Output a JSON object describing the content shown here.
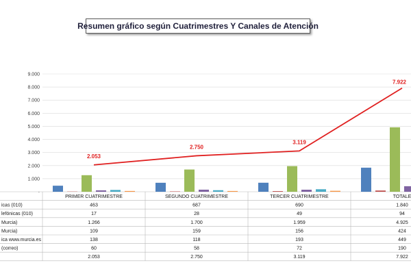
{
  "title": "Resumen gráfico según Cuatrimestres Y  Canales de Atención",
  "chart_data": {
    "type": "bar",
    "categories": [
      "PRIMER CUATRIMESTRE",
      "SEGUNDO CUATRIMESTRE",
      "TERCER CUATRIMESTRE",
      "TOTALE"
    ],
    "series": [
      {
        "name": "icas        (010)",
        "color": "#4f81bd",
        "values": [
          463,
          687,
          690,
          1840
        ]
      },
      {
        "name": "lefónicas (010)",
        "color": "#c0504d",
        "values": [
          17,
          28,
          49,
          94
        ]
      },
      {
        "name": "Murcia)",
        "color": "#9bbb59",
        "values": [
          1266,
          1700,
          1959,
          4925
        ]
      },
      {
        "name": "Murcia)",
        "color": "#8064a2",
        "values": [
          109,
          159,
          156,
          424
        ]
      },
      {
        "name": "ica www.murcia.es",
        "color": "#4bacc6",
        "values": [
          138,
          118,
          193,
          449
        ]
      },
      {
        "name": "(correo)",
        "color": "#f79646",
        "values": [
          60,
          58,
          72,
          190
        ]
      }
    ],
    "line": {
      "name": "",
      "color": "#e02020",
      "values": [
        2053,
        2750,
        3119,
        7922
      ]
    },
    "ylim": [
      0,
      9000
    ],
    "y_ticks": [
      "9.000",
      "8.000",
      "7.000",
      "6.000",
      "5.000",
      "4.000",
      "3.000",
      "2.000",
      "1.000",
      "-"
    ],
    "line_labels": [
      "2.053",
      "2.750",
      "3.119",
      "7.922"
    ],
    "table": {
      "header": [
        "PRIMER CUATRIMESTRE",
        "SEGUNDO CUATRIMESTRE",
        "TERCER CUATRIMESTRE",
        "TOTALE"
      ],
      "rows": [
        {
          "label": "icas        (010)",
          "cells": [
            "463",
            "687",
            "690",
            "1.840"
          ]
        },
        {
          "label": "lefónicas (010)",
          "cells": [
            "17",
            "28",
            "49",
            "94"
          ]
        },
        {
          "label": "Murcia)",
          "cells": [
            "1.266",
            "1.700",
            "1.959",
            "4.925"
          ]
        },
        {
          "label": "Murcia)",
          "cells": [
            "109",
            "159",
            "156",
            "424"
          ]
        },
        {
          "label": "ica www.murcia.es",
          "cells": [
            "138",
            "118",
            "193",
            "449"
          ]
        },
        {
          "label": "(correo)",
          "cells": [
            "60",
            "58",
            "72",
            "190"
          ]
        },
        {
          "label": "",
          "cells": [
            "2.053",
            "2.750",
            "3.119",
            "7.922"
          ]
        }
      ]
    }
  }
}
